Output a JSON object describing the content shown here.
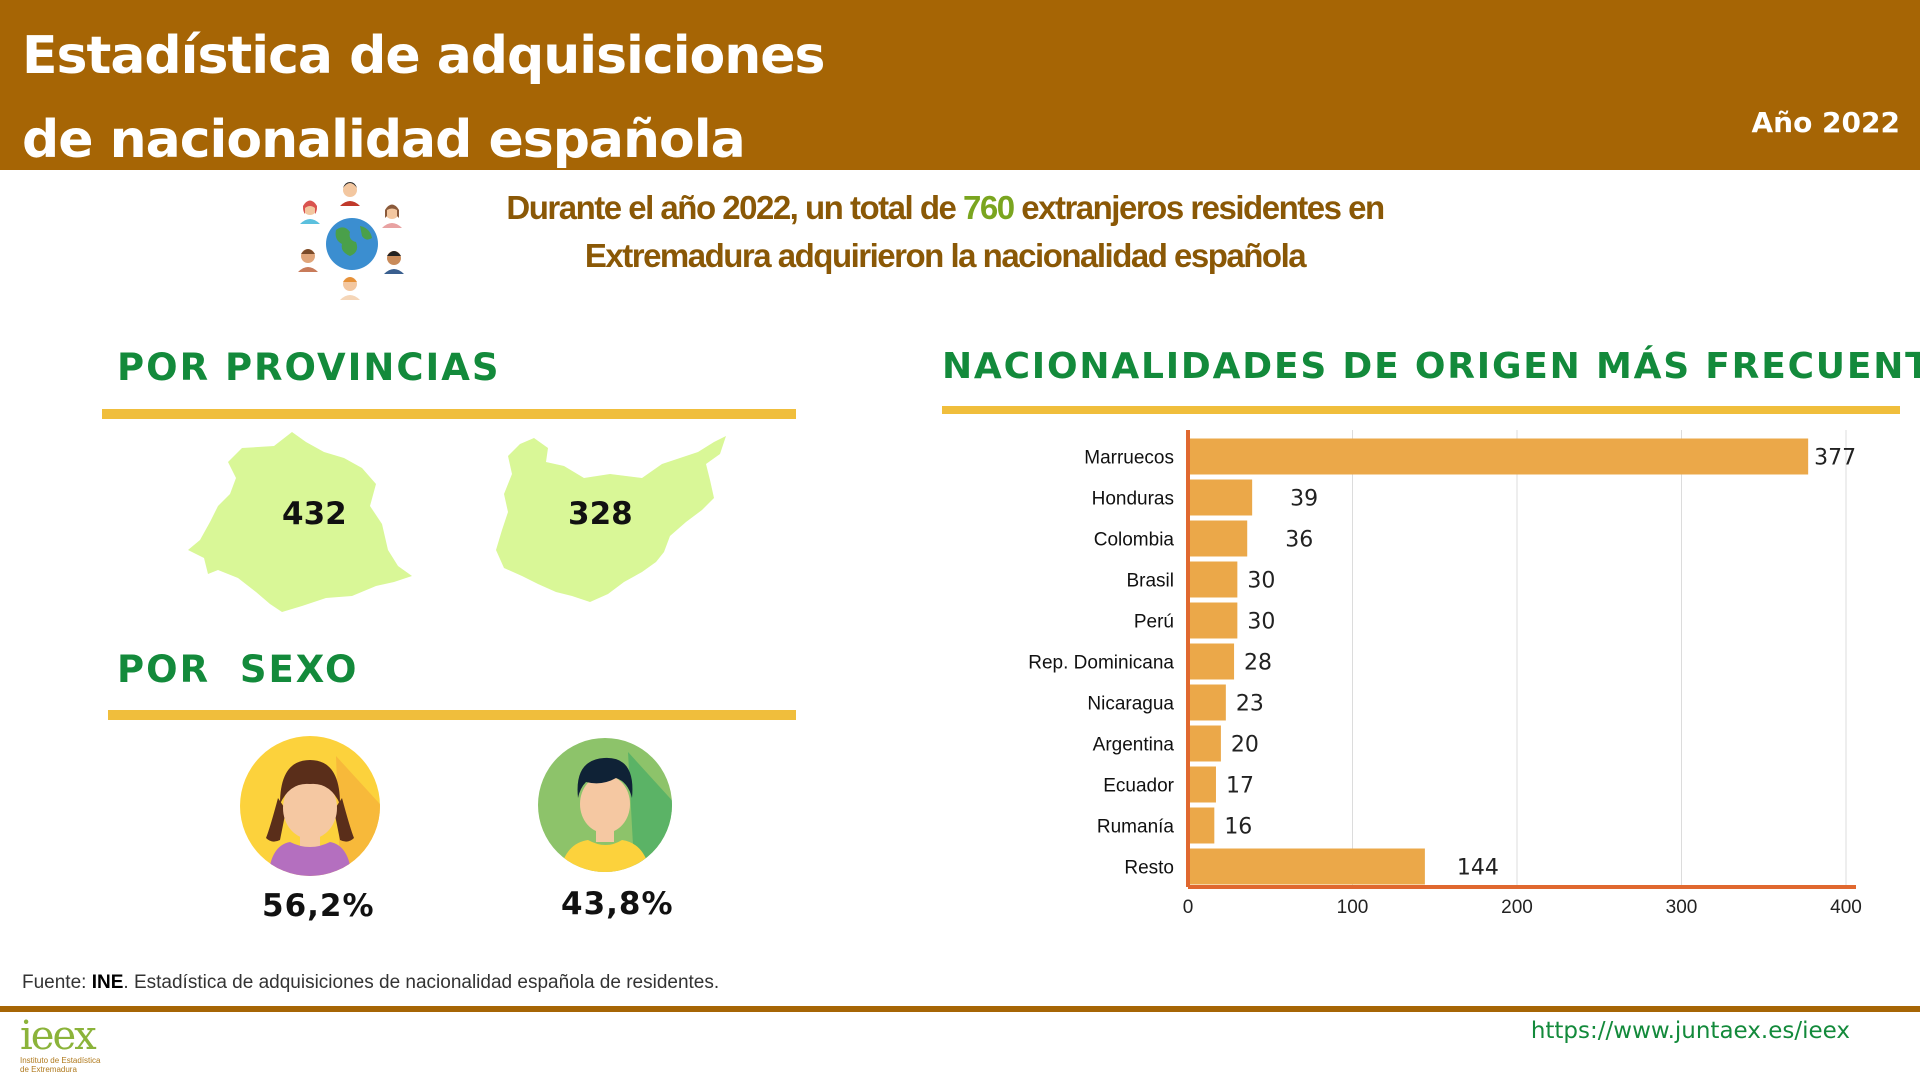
{
  "header": {
    "title_line1": "Estadística de adquisiciones",
    "title_line2": "de nacionalidad española",
    "year": "Año 2022"
  },
  "intro": {
    "text_before": "Durante el año 2022, un total de ",
    "highlight": "760",
    "text_after": " extranjeros residentes en",
    "line2": "Extremadura adquirieron la nacionalidad española"
  },
  "provinces": {
    "title": "POR PROVINCIAS",
    "items": [
      {
        "value": "432"
      },
      {
        "value": "328"
      }
    ]
  },
  "sex": {
    "title": "POR  SEXO",
    "women_pct": "56,2%",
    "men_pct": "43,8%"
  },
  "nationalities": {
    "title": "NACIONALIDADES DE ORIGEN MÁS FRECUENTES"
  },
  "colors": {
    "header": "#a66505",
    "accent_green": "#138a3b",
    "rule": "#f0be3c",
    "bar": "#eba849",
    "axis": "#e0682f",
    "map": "#d9f797"
  },
  "chart_data": {
    "type": "bar",
    "orientation": "horizontal",
    "categories": [
      "Marruecos",
      "Honduras",
      "Colombia",
      "Brasil",
      "Perú",
      "Rep. Dominicana",
      "Nicaragua",
      "Argentina",
      "Ecuador",
      "Rumanía",
      "Resto"
    ],
    "values": [
      377,
      39,
      36,
      30,
      30,
      28,
      23,
      20,
      17,
      16,
      144
    ],
    "xlim": [
      0,
      400
    ],
    "xticks": [
      0,
      100,
      200,
      300,
      400
    ],
    "grid": true,
    "title": "",
    "xlabel": "",
    "ylabel": ""
  },
  "footer": {
    "source_label": "Fuente: ",
    "source_org": "INE",
    "source_text": ". Estadística de adquisiciones de nacionalidad española de residentes.",
    "url": "https://www.juntaex.es/ieex",
    "logo_text": "ieex",
    "logo_sub1": "Instituto de Estadística",
    "logo_sub2": "de Extremadura"
  }
}
